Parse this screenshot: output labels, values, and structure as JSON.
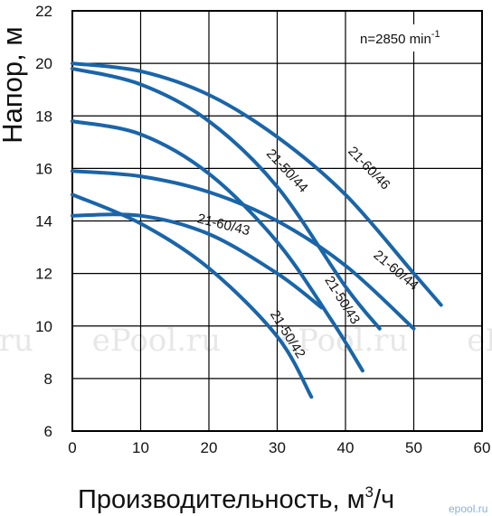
{
  "chart_data": {
    "type": "line",
    "xlabel": "Производительность, м³/ч",
    "xlabel_main": "Производительность, м",
    "xlabel_sup": "3",
    "xlabel_tail": "/ч",
    "ylabel": "Напор, м",
    "xlim": [
      0,
      60
    ],
    "ylim": [
      6,
      22
    ],
    "xticks": [
      0,
      10,
      20,
      30,
      40,
      50,
      60
    ],
    "yticks": [
      6,
      8,
      10,
      12,
      14,
      16,
      18,
      20,
      22
    ],
    "grid": true,
    "annotation": "n=2850 min",
    "annotation_sup": "-1",
    "series": [
      {
        "name": "21-60/46",
        "x": [
          0,
          10,
          20,
          30,
          40,
          50,
          54
        ],
        "y": [
          20.0,
          19.7,
          18.8,
          17.2,
          15.0,
          12.0,
          10.8
        ]
      },
      {
        "name": "21-50/44",
        "x": [
          0,
          10,
          20,
          30,
          40,
          45
        ],
        "y": [
          19.8,
          19.2,
          17.8,
          15.3,
          11.5,
          9.9
        ]
      },
      {
        "name": "21-60/44",
        "x": [
          0,
          10,
          20,
          30,
          40,
          50
        ],
        "y": [
          15.9,
          15.7,
          15.1,
          14.0,
          12.3,
          9.9
        ]
      },
      {
        "name": "21-50/43",
        "x": [
          0,
          10,
          20,
          30,
          38,
          42.5
        ],
        "y": [
          17.8,
          17.3,
          15.8,
          13.2,
          10.2,
          8.3
        ]
      },
      {
        "name": "21-60/43",
        "x": [
          0,
          10,
          20,
          30,
          36.5
        ],
        "y": [
          14.2,
          14.2,
          13.5,
          12.0,
          10.7
        ]
      },
      {
        "name": "21-50/42",
        "x": [
          0,
          10,
          20,
          30,
          35
        ],
        "y": [
          15.0,
          13.9,
          12.2,
          9.6,
          7.3
        ]
      }
    ]
  },
  "watermark": ".ru      ePool.ru      ePool.ru      ePool.ru",
  "logo_text": "epool.ru",
  "colors": {
    "curve": "#1a65a8",
    "grid": "#000000",
    "axis": "#000000"
  }
}
